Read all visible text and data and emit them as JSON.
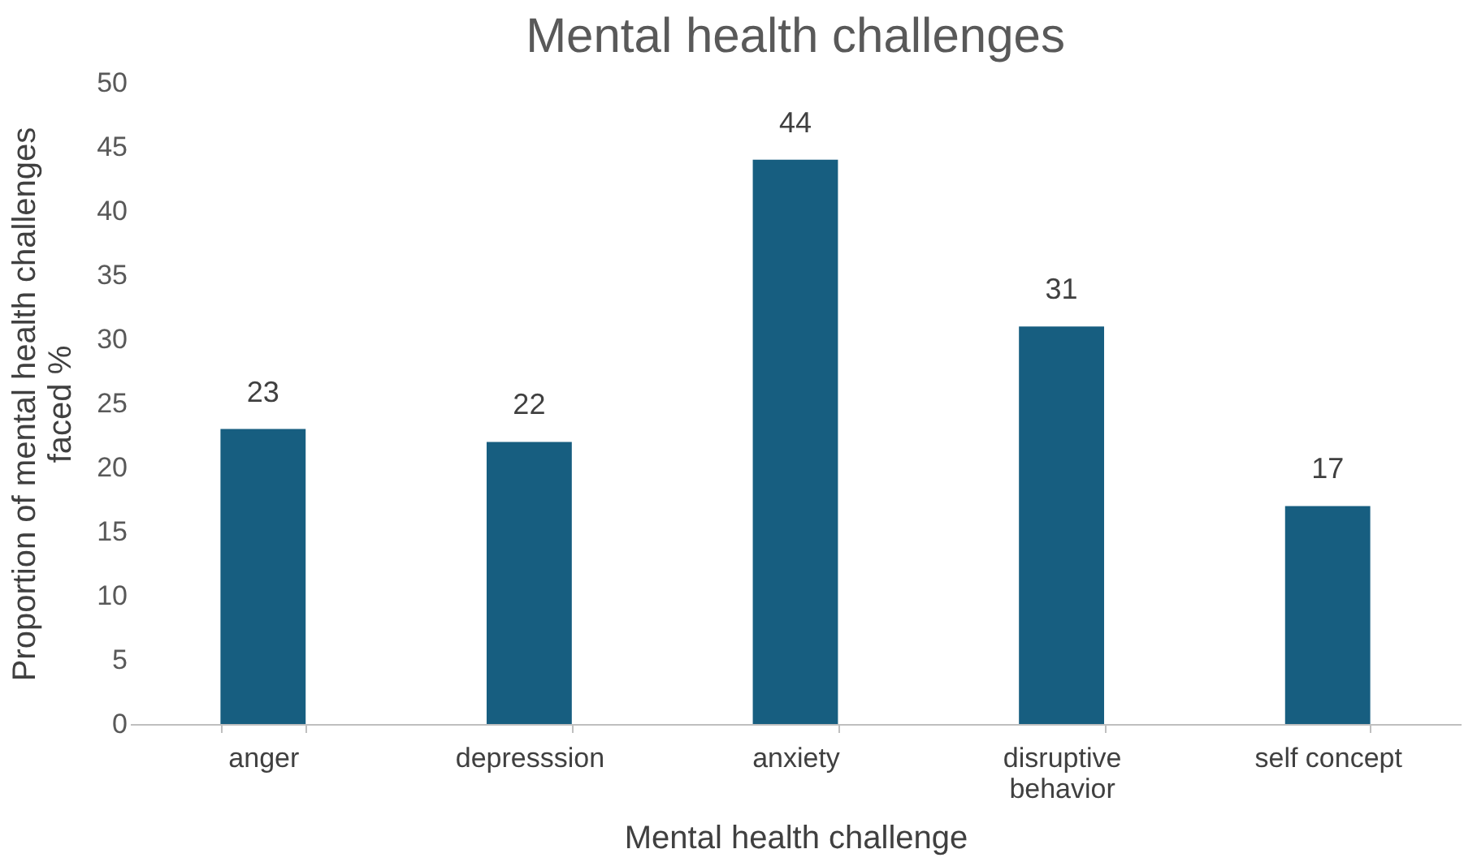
{
  "chart_data": {
    "type": "bar",
    "title": "Mental health challenges",
    "xlabel": "Mental health challenge",
    "ylabel": "Proportion of mental health challenges faced %",
    "categories": [
      "anger",
      "depresssion",
      "anxiety",
      "disruptive behavior",
      "self concept"
    ],
    "values": [
      23,
      22,
      44,
      31,
      17
    ],
    "color": "#175e80",
    "ylim": [
      0,
      50
    ],
    "yticks": [
      0,
      5,
      10,
      15,
      20,
      25,
      30,
      35,
      40,
      45,
      50
    ],
    "grid": false,
    "data_labels": true
  }
}
